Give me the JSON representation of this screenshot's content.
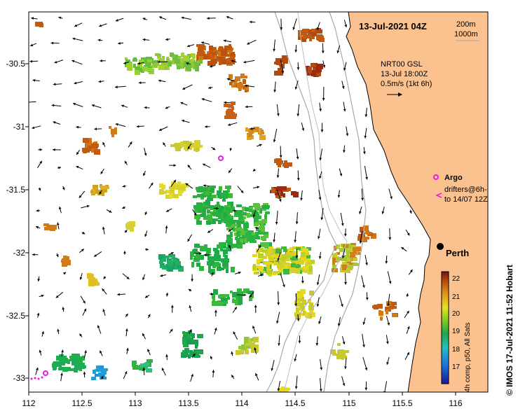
{
  "map": {
    "date_label": "13-Jul-2021 04Z",
    "isobath_labels": [
      "200m",
      "1000m"
    ],
    "current_info": [
      "NRT00 GSL",
      "13-Jul 18:00Z",
      "0.5m/s (1kt 6h)"
    ],
    "argo_label": "Argo",
    "drifters_label": [
      "drifters@6h-",
      "to 14/07 12Z"
    ],
    "city_label": "Perth",
    "x_ticks": [
      "112",
      "112.5",
      "113",
      "113.5",
      "114",
      "114.5",
      "115",
      "115.5",
      "116"
    ],
    "y_ticks": [
      "-30.5",
      "-31",
      "-31.5",
      "-32",
      "-32.5",
      "-33"
    ],
    "colorbar": {
      "ticks": [
        "22",
        "21",
        "20",
        "19",
        "18",
        "17"
      ],
      "label": "4h comp, p50, All Sats"
    },
    "credit": "© IMOS 17-Jul-2021 11:52 Hobart",
    "colors": {
      "land": "#FBC28F",
      "sst_warm": "#C25A10",
      "sst_mid": "#E8D81A",
      "sst_cool": "#22B045",
      "argo": "#E61CE6"
    }
  }
}
